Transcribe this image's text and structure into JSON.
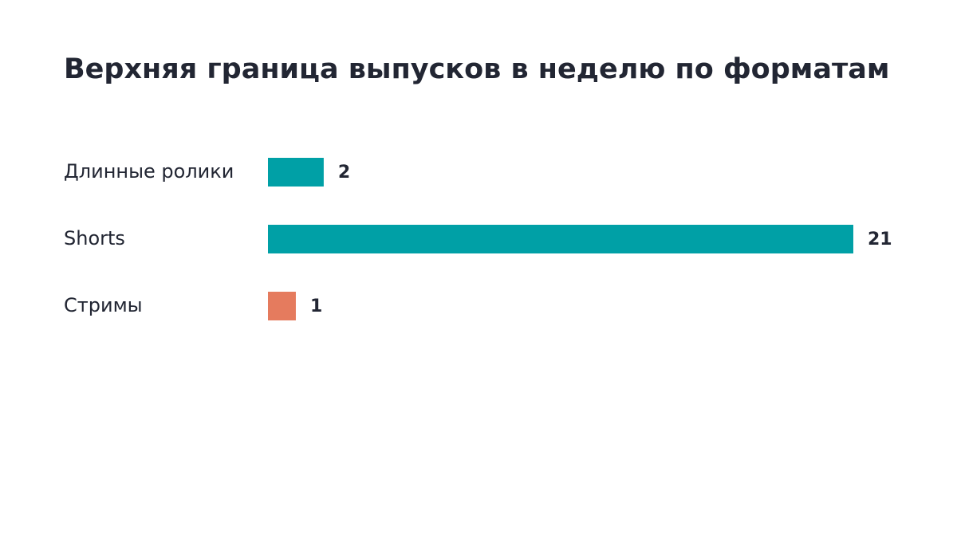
{
  "chart_data": {
    "type": "bar",
    "title": "Верхняя граница выпусков в неделю по форматам",
    "categories": [
      "Длинные ролики",
      "Shorts",
      "Стримы"
    ],
    "values": [
      2,
      21,
      1
    ],
    "colors": [
      "#00a0a6",
      "#00a0a6",
      "#e57b5e"
    ]
  }
}
